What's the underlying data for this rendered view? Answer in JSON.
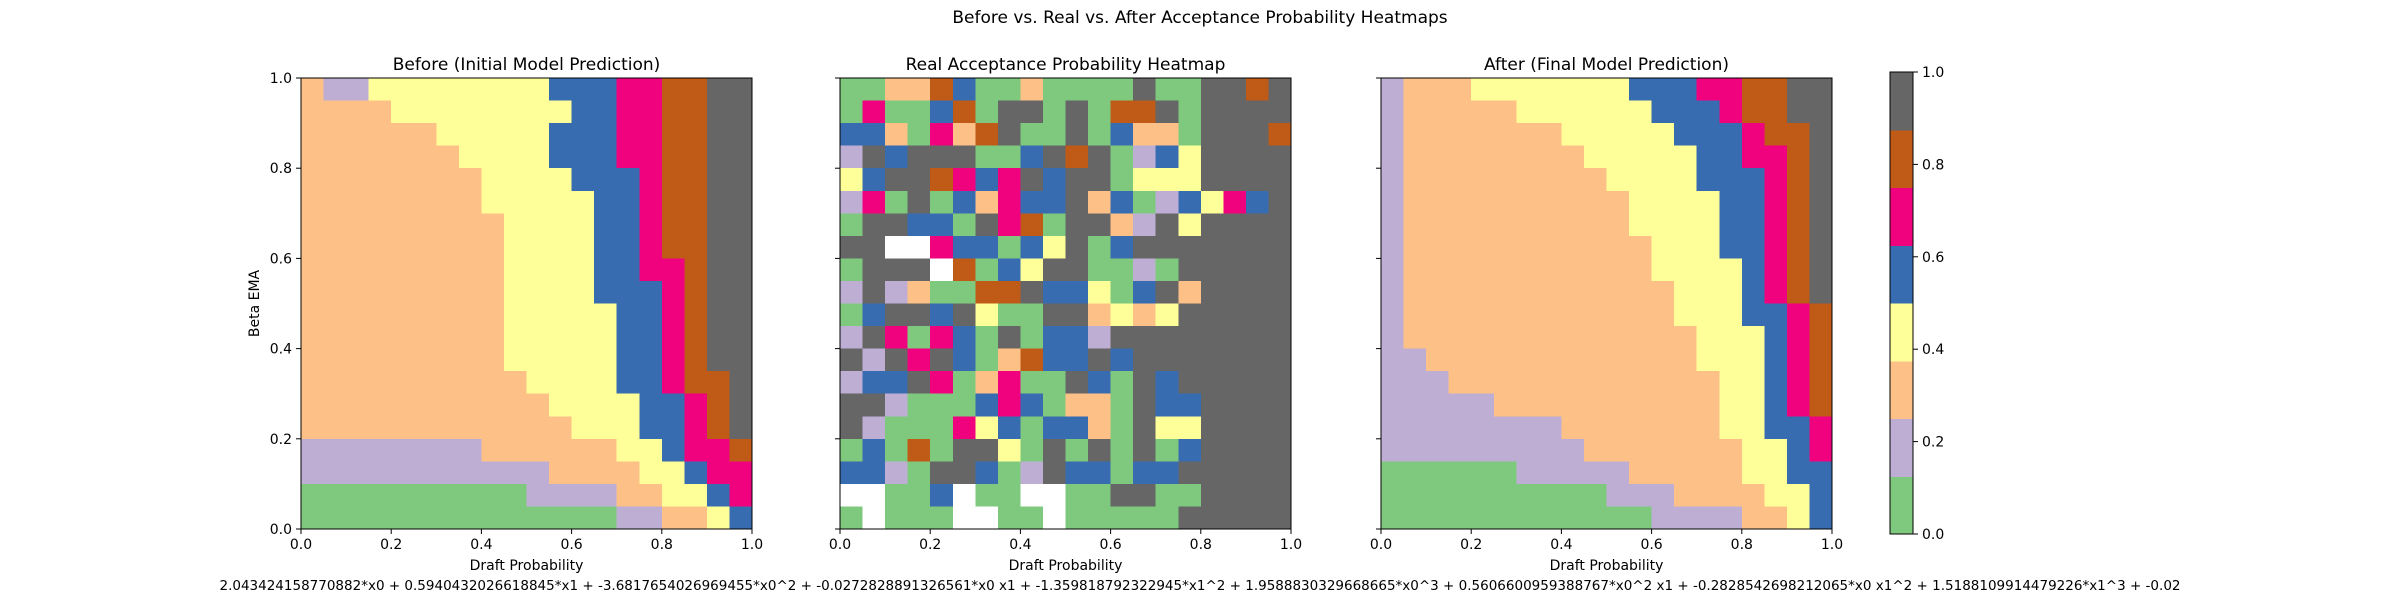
{
  "figure": {
    "suptitle": "Before vs. Real vs. After Acceptance Probability Heatmaps",
    "footer": "2.043424158770882*x0 + 0.5940432026618845*x1 + -3.6817654026969455*x0^2 + -0.02728288913265​61*x0 x1 + -1.359818792322945*x1^2 + 1.958883032966​8665*x0^3 + 0.5606600959388767*x0^2 x1 + -0.2828542698212065*x0 x1^2 + 1.5188109914479226*x1^3 + -0.02"
  },
  "colorbar": {
    "ticks": [
      "0.0",
      "0.2",
      "0.4",
      "0.6",
      "0.8",
      "1.0"
    ],
    "palette": [
      "#7fc97f",
      "#beaed4",
      "#fdc086",
      "#ffff99",
      "#386cb0",
      "#f0027f",
      "#bf5b17",
      "#666666"
    ],
    "vmin": 0,
    "vmax": 1
  },
  "chart_data": [
    {
      "type": "heatmap",
      "title": "Before (Initial Model Prediction)",
      "xlabel": "Draft Probability",
      "ylabel": "Beta EMA",
      "xlim": [
        0,
        1
      ],
      "ylim": [
        0,
        1
      ],
      "x_ticks": [
        "0.0",
        "0.2",
        "0.4",
        "0.6",
        "0.8",
        "1.0"
      ],
      "y_ticks": [
        "0.0",
        "0.2",
        "0.4",
        "0.6",
        "0.8",
        "1.0"
      ],
      "nx": 20,
      "ny": 20,
      "rows_note": "rows listed from y=1.0 (top) down to y=0.0; values are palette class indices 0-7 (class k spans k/8..(k+1)/8)",
      "rows": [
        "21133333333444556677",
        "22223333333344556677",
        "22222233333444556677",
        "22222223333444556677",
        "22222222333344456677",
        "22222222333334456677",
        "22222222233334456677",
        "22222222233334456677",
        "22222222233334455677",
        "22222222233334445677",
        "22222222233333445677",
        "22222222233333445677",
        "22222222233333445677",
        "22222222223333445667",
        "22222222222333344567",
        "22222222222233344567",
        "11111111222222334556",
        "11111111111222233455",
        "00000000001111223345",
        "00000000000000112234"
      ]
    },
    {
      "type": "heatmap",
      "title": "Real Acceptance Probability Heatmap",
      "xlabel": "Draft Probability",
      "ylabel": "",
      "xlim": [
        0,
        1
      ],
      "ylim": [
        0,
        1
      ],
      "x_ticks": [
        "0.0",
        "0.2",
        "0.4",
        "0.6",
        "0.8",
        "1.0"
      ],
      "y_ticks": [
        "",
        "",
        "",
        "",
        "",
        ""
      ],
      "nx": 20,
      "ny": 20,
      "rows_note": "rows listed from y=1.0 (top) down to y=0.0; values are palette class indices 0-9 (8 = white/no data)",
      "rows": [
        "00226400200007007767",
        "05004607707066707777",
        "44205267007042207776",
        "17477700476701437777",
        "34776545747703337777",
        "15070425447240143547",
        "07744075607721737777",
        "77985440437047777777",
        "07778604377001077777",
        "17120066744304727777",
        "04774730077232377777",
        "17505407044177777777",
        "71757402644747777777",
        "14475025007407477777",
        "77100045402207447777",
        "71000534044207337777",
        "04060773070707047777",
        "44107740174404477777",
        "88004800880077007777",
        "08000880080000077777"
      ]
    },
    {
      "type": "heatmap",
      "title": "After (Final Model Prediction)",
      "xlabel": "Draft Probability",
      "ylabel": "",
      "xlim": [
        0,
        1
      ],
      "ylim": [
        0,
        1
      ],
      "x_ticks": [
        "0.0",
        "0.2",
        "0.4",
        "0.6",
        "0.8",
        "1.0"
      ],
      "y_ticks": [
        "",
        "",
        "",
        "",
        "",
        ""
      ],
      "nx": 20,
      "ny": 20,
      "rows_note": "rows listed from y=1.0 (top) down to y=0.0; values are palette class indices 0-7",
      "rows": [
        "12223333333444556677",
        "12222233333344456677",
        "12222222333334445667",
        "12222222233333445567",
        "12222222223333444567",
        "12222222222333344567",
        "12222222222333344567",
        "12222222222233344567",
        "12222222222233334567",
        "12222222222223334567",
        "12222222222223334456",
        "12222222222222333456",
        "11222222222222333456",
        "11122222222222233456",
        "11111222222222233456",
        "11111111222222233445",
        "11111111122222223345",
        "00000011111222223344",
        "00000000001112222334",
        "00000000000011112234"
      ]
    }
  ]
}
